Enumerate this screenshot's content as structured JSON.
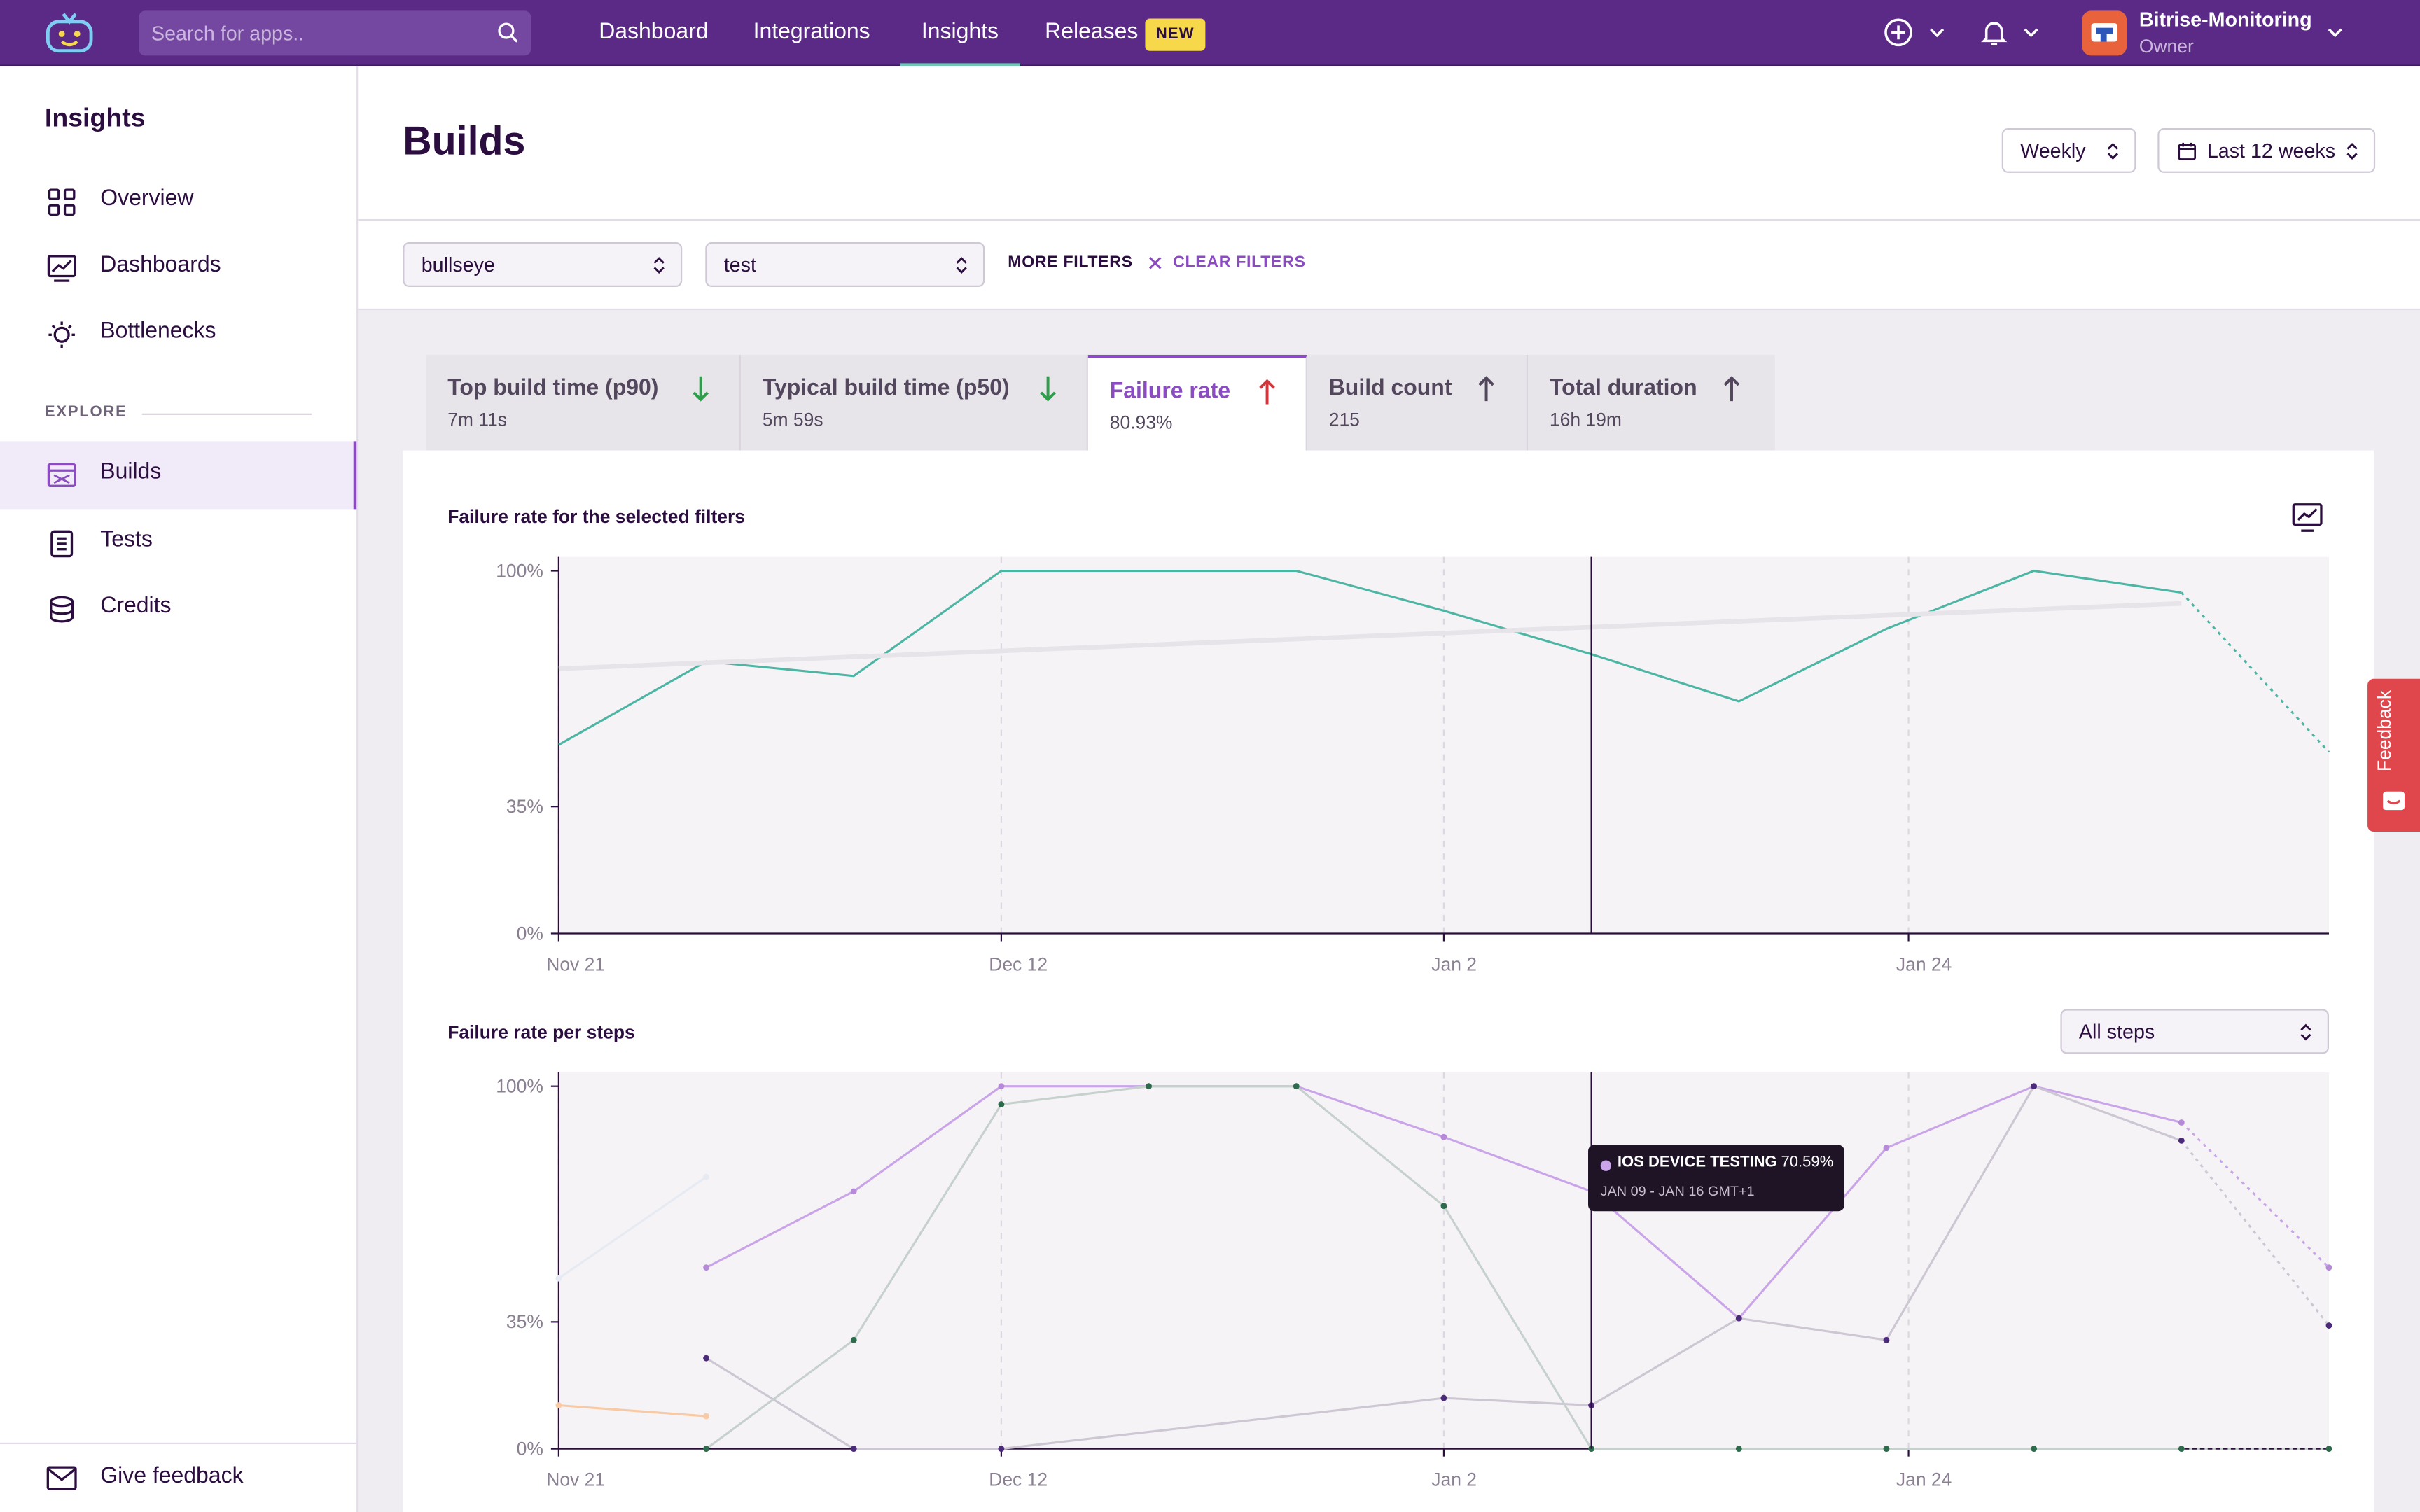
{
  "search": {
    "placeholder": "Search for apps.."
  },
  "nav": {
    "items": [
      {
        "label": "Dashboard"
      },
      {
        "label": "Integrations"
      },
      {
        "label": "Insights"
      },
      {
        "label": "Releases"
      }
    ],
    "active": "Insights",
    "new_badge": "NEW"
  },
  "account": {
    "name": "Bitrise-Monitoring",
    "role": "Owner"
  },
  "sidebar": {
    "title": "Insights",
    "items": [
      {
        "label": "Overview",
        "icon": "grid-icon"
      },
      {
        "label": "Dashboards",
        "icon": "chart-board-icon"
      },
      {
        "label": "Bottlenecks",
        "icon": "lightbulb-icon"
      }
    ],
    "explore_label": "EXPLORE",
    "explore_items": [
      {
        "label": "Builds",
        "icon": "builds-icon",
        "active": true
      },
      {
        "label": "Tests",
        "icon": "clipboard-icon"
      },
      {
        "label": "Credits",
        "icon": "coins-icon"
      }
    ],
    "footer": "Give feedback"
  },
  "header": {
    "title": "Builds",
    "period": "Weekly",
    "range": "Last 12 weeks"
  },
  "filters": {
    "app": "bullseye",
    "workflow": "test",
    "more": "MORE FILTERS",
    "clear": "CLEAR FILTERS"
  },
  "tabs": [
    {
      "title": "Top build time (p90)",
      "value": "7m 11s",
      "trend": "down",
      "trend_color": "#2e9e4a"
    },
    {
      "title": "Typical build time (p50)",
      "value": "5m 59s",
      "trend": "down",
      "trend_color": "#2e9e4a"
    },
    {
      "title": "Failure rate",
      "value": "80.93%",
      "trend": "up",
      "trend_color": "#d4343b",
      "active": true
    },
    {
      "title": "Build count",
      "value": "215",
      "trend": "up",
      "trend_color": "#52475c"
    },
    {
      "title": "Total duration",
      "value": "16h 19m",
      "trend": "up",
      "trend_color": "#52475c"
    }
  ],
  "colors": {
    "brand": "#5b2a86",
    "accent": "#8b4cc2",
    "teal": "#4db5a3",
    "feedback": "#e0474c"
  },
  "chart_data": [
    {
      "type": "line",
      "title": "Failure rate for the selected filters",
      "x": [
        "Nov 21",
        "Nov 28",
        "Dec 5",
        "Dec 12",
        "Dec 19",
        "Dec 26",
        "Jan 2",
        "Jan 9",
        "Jan 16",
        "Jan 23",
        "Jan 30",
        "Feb 6",
        "Feb 13"
      ],
      "xticks": [
        "Nov 21",
        "Dec 12",
        "Jan 2",
        "Jan 24"
      ],
      "yticks": [
        "0%",
        "35%",
        "100%"
      ],
      "ylim": [
        0,
        100
      ],
      "series": [
        {
          "values": [
            52,
            75,
            71,
            100,
            100,
            100,
            89,
            77,
            64,
            84,
            100,
            94,
            50
          ],
          "color": "#4db5a3"
        },
        {
          "values": [
            73,
            null,
            null,
            null,
            null,
            null,
            null,
            null,
            null,
            null,
            null,
            91,
            null
          ],
          "color": "#e6e3e9",
          "role": "trend"
        }
      ]
    },
    {
      "type": "line",
      "title": "Failure rate per steps",
      "selector": "All steps",
      "x": [
        "Nov 21",
        "Nov 28",
        "Dec 5",
        "Dec 12",
        "Dec 19",
        "Dec 26",
        "Jan 2",
        "Jan 9",
        "Jan 16",
        "Jan 23",
        "Jan 30",
        "Feb 6",
        "Feb 13"
      ],
      "xticks": [
        "Nov 21",
        "Dec 12",
        "Jan 2",
        "Jan 24"
      ],
      "yticks": [
        "0%",
        "35%",
        "100%"
      ],
      "ylim": [
        0,
        100
      ],
      "series": [
        {
          "name": "iOS Device Testing",
          "values": [
            null,
            50,
            71,
            100,
            100,
            100,
            86,
            71,
            36,
            83,
            100,
            90,
            50
          ],
          "color": "#c9a4e8"
        },
        {
          "values": [
            null,
            25,
            0,
            0,
            null,
            null,
            14,
            12,
            36,
            30,
            100,
            85,
            34
          ],
          "color": "#cdc6d3"
        },
        {
          "values": [
            null,
            0,
            30,
            95,
            100,
            100,
            67,
            0,
            0,
            0,
            0,
            0,
            0
          ],
          "color": "#c6d1cd"
        },
        {
          "values": [
            47,
            75,
            null,
            null,
            null,
            null,
            null,
            null,
            null,
            null,
            null,
            null,
            null
          ],
          "color": "#e6eaf2"
        },
        {
          "values": [
            12,
            9,
            null,
            null,
            null,
            null,
            null,
            null,
            null,
            null,
            null,
            null,
            null
          ],
          "color": "#f7c9a4"
        }
      ],
      "tooltip": {
        "name": "IOS DEVICE TESTING",
        "value": "70.59%",
        "range": "JAN 09 - JAN 16 GMT+1"
      }
    }
  ],
  "feedback_tab": "Feedback"
}
